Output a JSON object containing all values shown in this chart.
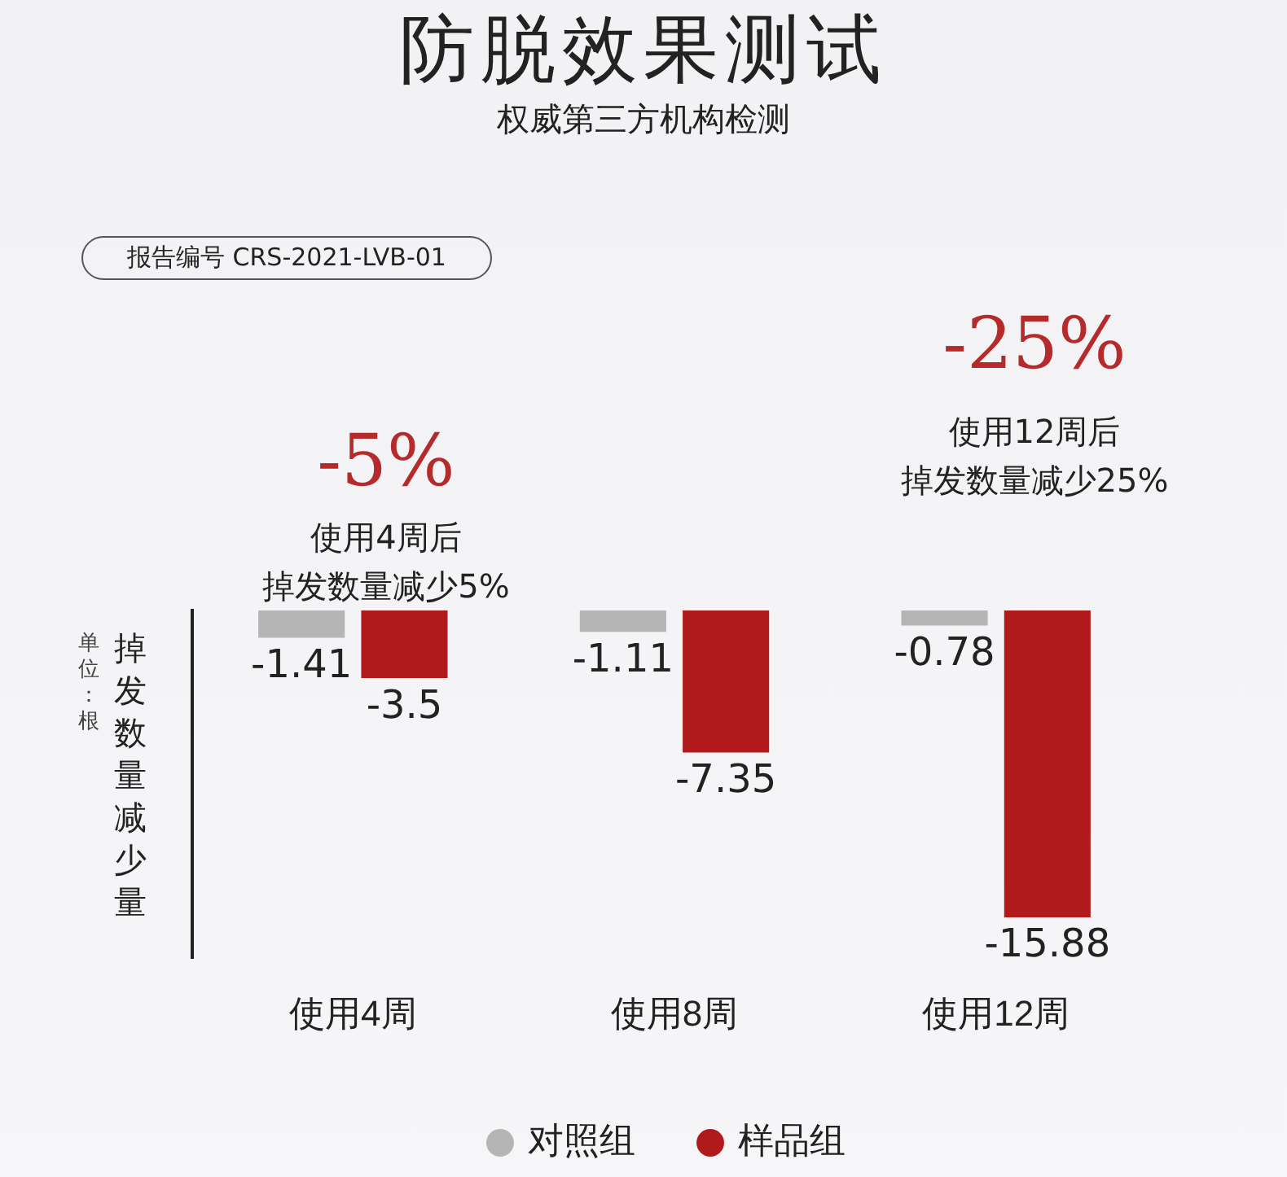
{
  "chart_data": {
    "type": "bar",
    "title": "防脱效果测试",
    "subtitle": "权威第三方机构检测",
    "ylabel": "掉发数量减少量",
    "annotations": [
      "报告编号 CRS-2021-LVB-01",
      "-5%",
      "使用4周后",
      "掉发数量减少5%",
      "-25%",
      "使用12周后",
      "掉发数量减少25%",
      "单位：根"
    ],
    "categories": [
      "使用4周",
      "使用8周",
      "使用12周"
    ],
    "series": [
      {
        "name": "对照组",
        "color": "#b5b5b5",
        "values": [
          -1.41,
          -1.11,
          -0.78
        ]
      },
      {
        "name": "样品组",
        "color": "#b01a1a",
        "values": [
          -3.5,
          -7.35,
          -15.88
        ]
      }
    ],
    "ylim": [
      -18,
      0
    ],
    "data_labels": true,
    "grid": false,
    "tick_labels": "x",
    "legend": "bottom"
  }
}
